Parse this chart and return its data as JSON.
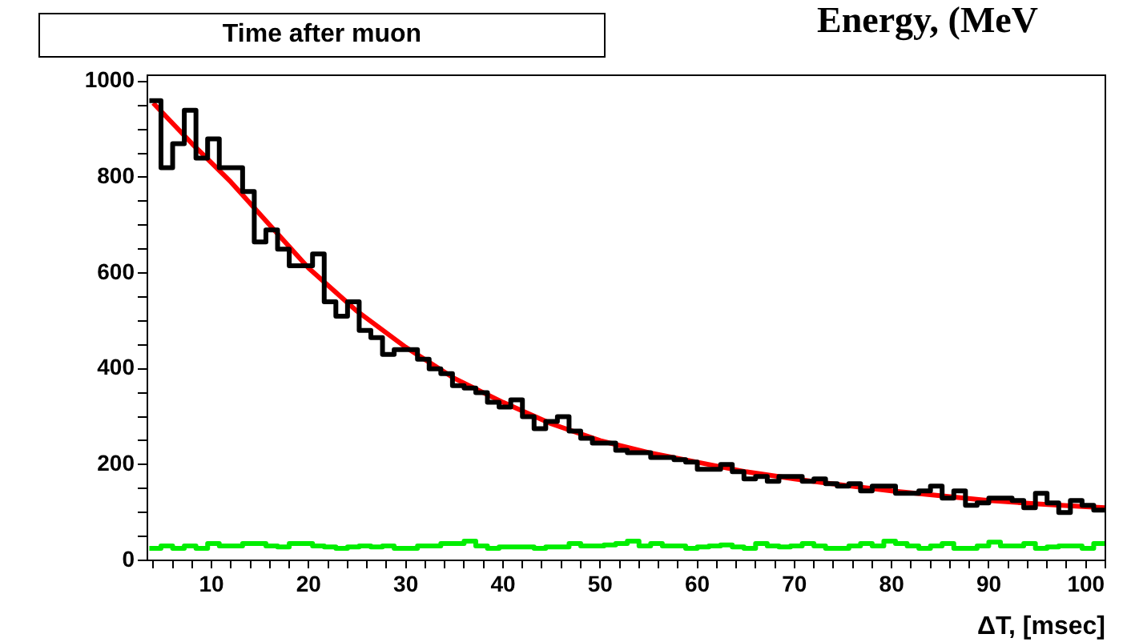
{
  "chart_data": {
    "type": "histogram",
    "title": "Time after muon",
    "xlabel": "ΔT, [msec]",
    "annotations": [
      "Energy, (MeV"
    ],
    "bins": [
      3.6,
      4.8,
      6.0,
      7.2,
      8.4,
      9.6,
      10.8,
      12.0,
      13.2,
      14.4,
      15.6,
      16.8,
      18.0,
      19.2,
      20.4,
      21.6,
      22.8,
      24.0,
      25.2,
      26.4,
      27.6,
      28.8,
      30.0,
      31.2,
      32.4,
      33.6,
      34.8,
      36.0,
      37.2,
      38.4,
      39.6,
      40.8,
      42.0,
      43.2,
      44.4,
      45.6,
      46.8,
      48.0,
      49.2,
      50.4,
      51.6,
      52.8,
      54.0,
      55.2,
      56.4,
      57.6,
      58.8,
      60.0,
      61.2,
      62.4,
      63.6,
      64.8,
      66.0,
      67.2,
      68.4,
      69.6,
      70.8,
      72.0,
      73.2,
      74.4,
      75.6,
      76.8,
      78.0,
      79.2,
      80.4,
      81.6,
      82.8,
      84.0,
      85.2,
      86.4,
      87.6,
      88.8,
      90.0,
      91.2,
      92.4,
      93.6,
      94.8,
      96.0,
      97.2,
      98.4,
      99.6,
      100.8,
      102.0
    ],
    "series": [
      {
        "color": "#000000",
        "values": [
          960,
          820,
          870,
          940,
          840,
          880,
          820,
          820,
          770,
          665,
          690,
          650,
          615,
          615,
          640,
          540,
          510,
          540,
          480,
          465,
          430,
          440,
          440,
          420,
          400,
          390,
          365,
          360,
          350,
          330,
          320,
          335,
          300,
          275,
          290,
          300,
          270,
          255,
          245,
          245,
          230,
          225,
          225,
          215,
          215,
          210,
          205,
          190,
          190,
          200,
          185,
          170,
          175,
          165,
          175,
          175,
          165,
          170,
          160,
          155,
          160,
          145,
          155,
          155,
          140,
          140,
          145,
          155,
          130,
          145,
          115,
          120,
          130,
          130,
          125,
          110,
          140,
          120,
          100,
          125,
          115,
          105
        ]
      },
      {
        "color": "#00ee00",
        "values": [
          25,
          30,
          25,
          30,
          25,
          35,
          30,
          30,
          35,
          35,
          30,
          28,
          35,
          35,
          30,
          28,
          25,
          28,
          30,
          28,
          30,
          25,
          25,
          30,
          30,
          35,
          35,
          40,
          30,
          25,
          28,
          28,
          28,
          25,
          28,
          28,
          35,
          30,
          30,
          32,
          35,
          40,
          30,
          35,
          30,
          30,
          25,
          28,
          30,
          32,
          28,
          25,
          35,
          30,
          28,
          30,
          35,
          30,
          25,
          25,
          30,
          35,
          30,
          40,
          35,
          30,
          25,
          30,
          35,
          25,
          25,
          30,
          38,
          30,
          30,
          35,
          25,
          28,
          30,
          30,
          25,
          35
        ]
      },
      {
        "type": "line",
        "color": "#ff0000",
        "x": [
          4,
          8,
          12,
          16,
          20,
          25,
          30,
          35,
          40,
          45,
          50,
          55,
          60,
          65,
          70,
          75,
          80,
          85,
          90,
          95,
          100,
          102
        ],
        "values": [
          955,
          870,
          790,
          700,
          610,
          520,
          445,
          380,
          330,
          285,
          250,
          225,
          205,
          185,
          170,
          157,
          145,
          135,
          125,
          118,
          112,
          110
        ]
      }
    ],
    "xlim": [
      3.4,
      102
    ],
    "xticks": [
      {
        "value": 4,
        "label": null
      },
      {
        "value": 6,
        "label": null
      },
      {
        "value": 8,
        "label": null
      },
      10,
      {
        "value": 12,
        "label": null
      },
      {
        "value": 14,
        "label": null
      },
      {
        "value": 16,
        "label": null
      },
      {
        "value": 18,
        "label": null
      },
      20,
      {
        "value": 22,
        "label": null
      },
      {
        "value": 24,
        "label": null
      },
      {
        "value": 26,
        "label": null
      },
      {
        "value": 28,
        "label": null
      },
      30,
      {
        "value": 32,
        "label": null
      },
      {
        "value": 34,
        "label": null
      },
      {
        "value": 36,
        "label": null
      },
      {
        "value": 38,
        "label": null
      },
      40,
      {
        "value": 42,
        "label": null
      },
      {
        "value": 44,
        "label": null
      },
      {
        "value": 46,
        "label": null
      },
      {
        "value": 48,
        "label": null
      },
      50,
      {
        "value": 52,
        "label": null
      },
      {
        "value": 54,
        "label": null
      },
      {
        "value": 56,
        "label": null
      },
      {
        "value": 58,
        "label": null
      },
      60,
      {
        "value": 62,
        "label": null
      },
      {
        "value": 64,
        "label": null
      },
      {
        "value": 66,
        "label": null
      },
      {
        "value": 68,
        "label": null
      },
      70,
      {
        "value": 72,
        "label": null
      },
      {
        "value": 74,
        "label": null
      },
      {
        "value": 76,
        "label": null
      },
      {
        "value": 78,
        "label": null
      },
      80,
      {
        "value": 82,
        "label": null
      },
      {
        "value": 84,
        "label": null
      },
      {
        "value": 86,
        "label": null
      },
      {
        "value": 88,
        "label": null
      },
      90,
      {
        "value": 92,
        "label": null
      },
      {
        "value": 94,
        "label": null
      },
      {
        "value": 96,
        "label": null
      },
      {
        "value": 98,
        "label": null
      },
      100,
      {
        "value": 102,
        "label": null
      }
    ],
    "ylim": [
      0,
      1013
    ],
    "yticks": [
      0,
      {
        "value": 50,
        "label": null
      },
      {
        "value": 100,
        "label": null
      },
      {
        "value": 150,
        "label": null
      },
      200,
      {
        "value": 250,
        "label": null
      },
      {
        "value": 300,
        "label": null
      },
      {
        "value": 350,
        "label": null
      },
      400,
      {
        "value": 450,
        "label": null
      },
      {
        "value": 500,
        "label": null
      },
      {
        "value": 550,
        "label": null
      },
      600,
      {
        "value": 650,
        "label": null
      },
      {
        "value": 700,
        "label": null
      },
      {
        "value": 750,
        "label": null
      },
      800,
      {
        "value": 850,
        "label": null
      },
      {
        "value": 900,
        "label": null
      },
      {
        "value": 950,
        "label": null
      },
      1000
    ]
  }
}
